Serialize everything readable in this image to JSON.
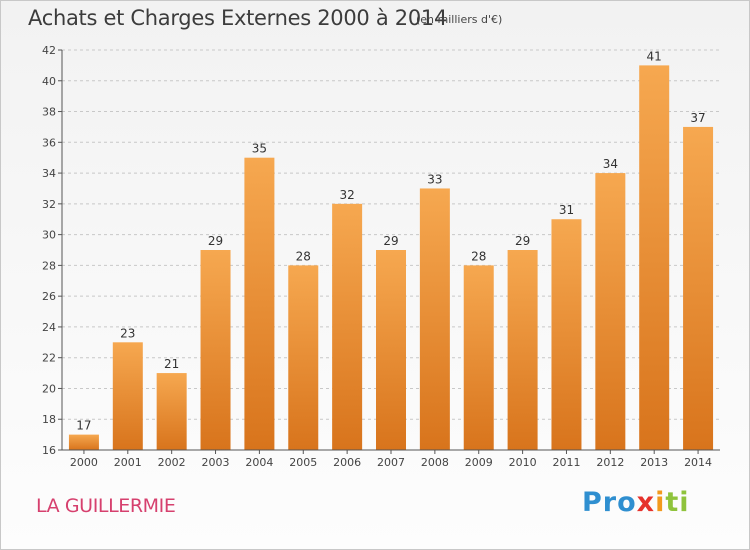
{
  "header": {
    "title": "Achats et Charges Externes 2000 à 2014",
    "unit": "(en milliers d'€)"
  },
  "footer": {
    "place": "LA GUILLERMIE"
  },
  "logo": {
    "text": "Proxiti",
    "parts": [
      "Pro",
      "x",
      "i",
      "ti"
    ]
  },
  "colors": {
    "bar_top": "#f6a850",
    "bar_bottom": "#d8741c",
    "axis": "#555555",
    "grid": "#c8c8c8",
    "title": "#3c3c3c",
    "place": "#d6406e"
  },
  "chart_data": {
    "type": "bar",
    "title": "Achats et Charges Externes 2000 à 2014",
    "subtitle": "(en milliers d'€)",
    "xlabel": "",
    "ylabel": "",
    "categories": [
      "2000",
      "2001",
      "2002",
      "2003",
      "2004",
      "2005",
      "2006",
      "2007",
      "2008",
      "2009",
      "2010",
      "2011",
      "2012",
      "2013",
      "2014"
    ],
    "values": [
      17,
      23,
      21,
      29,
      35,
      28,
      32,
      29,
      33,
      28,
      29,
      31,
      34,
      41,
      37
    ],
    "ylim": [
      16,
      42
    ],
    "yticks": [
      16,
      18,
      20,
      22,
      24,
      26,
      28,
      30,
      32,
      34,
      36,
      38,
      40,
      42
    ],
    "grid": "horizontal dashed",
    "legend": "none",
    "data_labels": true
  }
}
